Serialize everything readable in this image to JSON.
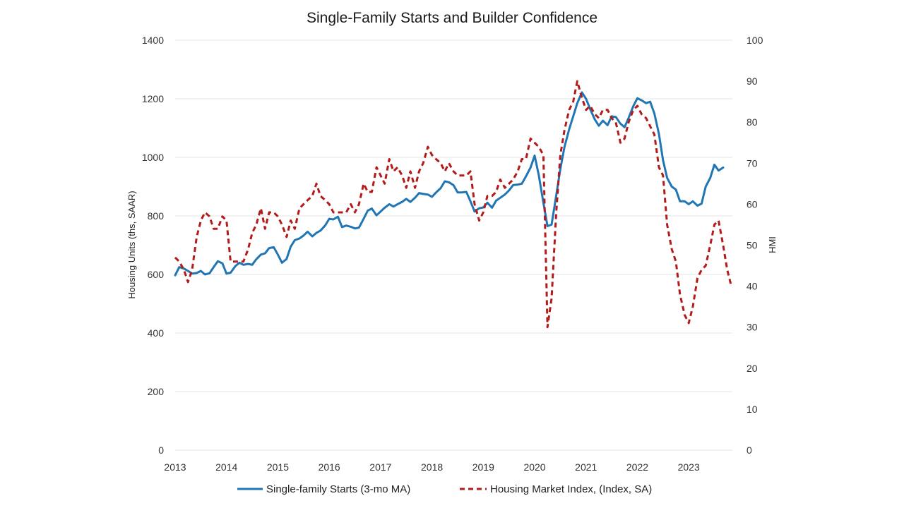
{
  "chart_data": {
    "type": "line",
    "title": "Single-Family Starts and Builder Confidence",
    "ylabel": "Housing Units (ths, SAAR)",
    "y2label": "HMI",
    "xlim": [
      2013,
      2023.85
    ],
    "ylim": [
      0,
      1400
    ],
    "y2lim": [
      0,
      100
    ],
    "x_ticks": [
      "2013",
      "2014",
      "2015",
      "2016",
      "2017",
      "2018",
      "2019",
      "2020",
      "2021",
      "2022",
      "2023"
    ],
    "y_ticks": [
      "0",
      "200",
      "400",
      "600",
      "800",
      "1000",
      "1200",
      "1400"
    ],
    "y2_ticks": [
      "0",
      "10",
      "20",
      "30",
      "40",
      "50",
      "60",
      "70",
      "80",
      "90",
      "100"
    ],
    "grid": true,
    "legend_position": "bottom",
    "colors": {
      "starts": "#2076b4",
      "hmi": "#b31b1b"
    },
    "series": [
      {
        "name": "Single-family Starts (3-mo MA)",
        "axis": "left",
        "style": "solid",
        "x": [
          2013.0,
          2013.08,
          2013.17,
          2013.25,
          2013.33,
          2013.42,
          2013.5,
          2013.58,
          2013.67,
          2013.75,
          2013.83,
          2013.92,
          2014.0,
          2014.08,
          2014.17,
          2014.25,
          2014.33,
          2014.42,
          2014.5,
          2014.58,
          2014.67,
          2014.75,
          2014.83,
          2014.92,
          2015.0,
          2015.08,
          2015.17,
          2015.25,
          2015.33,
          2015.42,
          2015.5,
          2015.58,
          2015.67,
          2015.75,
          2015.83,
          2015.92,
          2016.0,
          2016.08,
          2016.17,
          2016.25,
          2016.33,
          2016.42,
          2016.5,
          2016.58,
          2016.67,
          2016.75,
          2016.83,
          2016.92,
          2017.0,
          2017.08,
          2017.17,
          2017.25,
          2017.33,
          2017.42,
          2017.5,
          2017.58,
          2017.67,
          2017.75,
          2017.83,
          2017.92,
          2018.0,
          2018.08,
          2018.17,
          2018.25,
          2018.33,
          2018.42,
          2018.5,
          2018.58,
          2018.67,
          2018.75,
          2018.83,
          2018.92,
          2019.0,
          2019.08,
          2019.17,
          2019.25,
          2019.33,
          2019.42,
          2019.5,
          2019.58,
          2019.67,
          2019.75,
          2019.83,
          2019.92,
          2020.0,
          2020.08,
          2020.17,
          2020.25,
          2020.33,
          2020.42,
          2020.5,
          2020.58,
          2020.67,
          2020.75,
          2020.83,
          2020.92,
          2021.0,
          2021.08,
          2021.17,
          2021.25,
          2021.33,
          2021.42,
          2021.5,
          2021.58,
          2021.67,
          2021.75,
          2021.83,
          2021.92,
          2022.0,
          2022.08,
          2022.17,
          2022.25,
          2022.33,
          2022.42,
          2022.5,
          2022.58,
          2022.67,
          2022.75,
          2022.83,
          2022.92,
          2023.0,
          2023.08,
          2023.17,
          2023.25,
          2023.33,
          2023.42,
          2023.5,
          2023.58,
          2023.67
        ],
        "values": [
          597,
          625,
          620,
          612,
          603,
          605,
          612,
          600,
          604,
          625,
          645,
          638,
          603,
          606,
          628,
          640,
          633,
          636,
          633,
          652,
          668,
          672,
          690,
          693,
          668,
          640,
          653,
          695,
          717,
          723,
          733,
          746,
          730,
          742,
          750,
          767,
          790,
          788,
          797,
          762,
          767,
          763,
          757,
          760,
          790,
          818,
          825,
          802,
          815,
          828,
          840,
          832,
          840,
          848,
          858,
          848,
          862,
          878,
          875,
          873,
          865,
          880,
          895,
          918,
          915,
          905,
          880,
          880,
          882,
          850,
          815,
          826,
          829,
          845,
          828,
          852,
          862,
          873,
          887,
          905,
          907,
          910,
          935,
          965,
          1006,
          940,
          845,
          765,
          770,
          870,
          960,
          1035,
          1095,
          1140,
          1185,
          1222,
          1200,
          1165,
          1130,
          1108,
          1125,
          1110,
          1140,
          1138,
          1115,
          1103,
          1135,
          1175,
          1202,
          1195,
          1185,
          1190,
          1150,
          1080,
          990,
          930,
          900,
          890,
          850,
          850,
          840,
          850,
          835,
          842,
          900,
          930,
          975,
          955,
          965
        ]
      },
      {
        "name": "Housing Market Index, (Index, SA)",
        "axis": "right",
        "style": "dashed",
        "x": [
          2013.0,
          2013.08,
          2013.17,
          2013.25,
          2013.33,
          2013.42,
          2013.5,
          2013.58,
          2013.67,
          2013.75,
          2013.83,
          2013.92,
          2014.0,
          2014.08,
          2014.17,
          2014.25,
          2014.33,
          2014.42,
          2014.5,
          2014.58,
          2014.67,
          2014.75,
          2014.83,
          2014.92,
          2015.0,
          2015.08,
          2015.17,
          2015.25,
          2015.33,
          2015.42,
          2015.5,
          2015.58,
          2015.67,
          2015.75,
          2015.83,
          2015.92,
          2016.0,
          2016.08,
          2016.17,
          2016.25,
          2016.33,
          2016.42,
          2016.5,
          2016.58,
          2016.67,
          2016.75,
          2016.83,
          2016.92,
          2017.0,
          2017.08,
          2017.17,
          2017.25,
          2017.33,
          2017.42,
          2017.5,
          2017.58,
          2017.67,
          2017.75,
          2017.83,
          2017.92,
          2018.0,
          2018.08,
          2018.17,
          2018.25,
          2018.33,
          2018.42,
          2018.5,
          2018.58,
          2018.67,
          2018.75,
          2018.83,
          2018.92,
          2019.0,
          2019.08,
          2019.17,
          2019.25,
          2019.33,
          2019.42,
          2019.5,
          2019.58,
          2019.67,
          2019.75,
          2019.83,
          2019.92,
          2020.0,
          2020.08,
          2020.17,
          2020.25,
          2020.33,
          2020.42,
          2020.5,
          2020.58,
          2020.67,
          2020.75,
          2020.83,
          2020.92,
          2021.0,
          2021.08,
          2021.17,
          2021.25,
          2021.33,
          2021.42,
          2021.5,
          2021.58,
          2021.67,
          2021.75,
          2021.83,
          2021.92,
          2022.0,
          2022.08,
          2022.17,
          2022.25,
          2022.33,
          2022.42,
          2022.5,
          2022.58,
          2022.67,
          2022.75,
          2022.83,
          2022.92,
          2023.0,
          2023.08,
          2023.17,
          2023.25,
          2023.33,
          2023.42,
          2023.5,
          2023.58,
          2023.67,
          2023.75,
          2023.83
        ],
        "values": [
          47,
          46,
          44,
          41,
          44,
          52,
          56,
          58,
          57,
          54,
          54,
          57,
          56,
          46,
          46,
          46,
          46,
          49,
          53,
          55,
          59,
          54,
          58,
          58,
          57,
          55,
          52,
          56,
          54,
          59,
          60,
          61,
          62,
          65,
          62,
          61,
          60,
          58,
          58,
          58,
          58,
          60,
          58,
          60,
          65,
          63,
          63,
          69,
          67,
          65,
          71,
          68,
          69,
          67,
          64,
          68,
          64,
          68,
          70,
          74,
          72,
          71,
          70,
          68,
          70,
          68,
          67,
          67,
          67,
          68,
          60,
          56,
          58,
          62,
          62,
          63,
          66,
          64,
          65,
          66,
          68,
          71,
          71,
          76,
          75,
          74,
          72,
          30,
          37,
          58,
          72,
          78,
          83,
          85,
          90,
          86,
          83,
          84,
          82,
          81,
          83,
          83,
          81,
          80,
          75,
          76,
          80,
          83,
          84,
          82,
          81,
          79,
          77,
          69,
          67,
          55,
          49,
          46,
          38,
          33,
          31,
          35,
          42,
          44,
          45,
          50,
          55,
          56,
          50,
          44,
          40
        ]
      }
    ]
  }
}
